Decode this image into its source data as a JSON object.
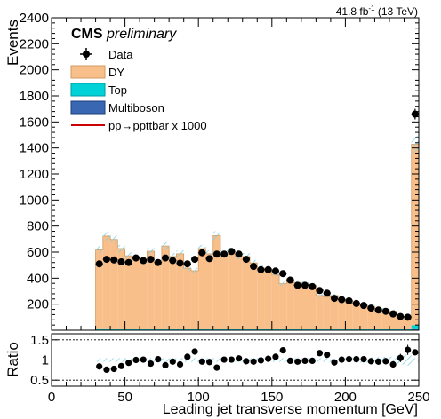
{
  "header": {
    "lumi": "41.8 fb",
    "lumi_exp": "-1",
    "energy": "(13 TeV)"
  },
  "labels": {
    "cms": "CMS",
    "preliminary": "preliminary"
  },
  "legend": [
    "Data",
    "DY",
    "Top",
    "Multiboson",
    "pp→ppttbar x 1000"
  ],
  "colors": {
    "dy": "#f9bf8a",
    "dy_edge": "#d49a60",
    "top": "#00d2d8",
    "multiboson": "#3a67b2",
    "signal": "#cc0000",
    "unc_hatch": "#7fd1e6"
  },
  "chart_data": [
    {
      "type": "bar",
      "panel": "main",
      "ylabel": "Events",
      "xlim": [
        0,
        250
      ],
      "ylim": [
        0,
        2400
      ],
      "yticks": [
        200,
        400,
        600,
        800,
        1000,
        1200,
        1400,
        1600,
        1800,
        2000,
        2200,
        2400
      ],
      "bin_edges": [
        30,
        35,
        40,
        45,
        50,
        55,
        60,
        65,
        70,
        75,
        80,
        85,
        90,
        95,
        100,
        105,
        110,
        115,
        120,
        125,
        130,
        135,
        140,
        145,
        150,
        155,
        160,
        165,
        170,
        175,
        180,
        185,
        190,
        195,
        200,
        205,
        210,
        215,
        220,
        225,
        230,
        235,
        240,
        245,
        250
      ],
      "series": [
        {
          "name": "DY",
          "values": [
            610,
            715,
            690,
            620,
            565,
            555,
            530,
            600,
            510,
            640,
            560,
            580,
            470,
            450,
            620,
            580,
            720,
            580,
            600,
            560,
            560,
            510,
            470,
            450,
            420,
            350,
            390,
            360,
            350,
            340,
            260,
            250,
            260,
            230,
            220,
            200,
            185,
            175,
            160,
            150,
            140,
            100,
            80,
            1390
          ]
        },
        {
          "name": "Top",
          "values": [
            6,
            6,
            5,
            5,
            5,
            5,
            5,
            5,
            5,
            5,
            5,
            5,
            5,
            5,
            5,
            5,
            5,
            5,
            5,
            5,
            5,
            5,
            5,
            5,
            5,
            5,
            5,
            5,
            5,
            5,
            5,
            5,
            5,
            5,
            5,
            5,
            5,
            5,
            5,
            5,
            5,
            5,
            5,
            30
          ]
        },
        {
          "name": "Multiboson",
          "values": [
            2,
            2,
            2,
            2,
            2,
            2,
            2,
            2,
            2,
            2,
            2,
            2,
            2,
            2,
            2,
            2,
            2,
            2,
            2,
            2,
            2,
            2,
            2,
            2,
            2,
            2,
            2,
            2,
            2,
            2,
            2,
            2,
            2,
            2,
            2,
            2,
            2,
            2,
            2,
            2,
            2,
            2,
            2,
            8
          ]
        },
        {
          "name": "Data",
          "values": [
            510,
            545,
            540,
            525,
            520,
            555,
            535,
            545,
            520,
            555,
            535,
            515,
            510,
            545,
            595,
            550,
            585,
            585,
            605,
            585,
            545,
            490,
            465,
            465,
            455,
            435,
            385,
            345,
            345,
            335,
            305,
            285,
            245,
            235,
            225,
            205,
            190,
            170,
            155,
            145,
            125,
            105,
            100,
            1660
          ]
        }
      ]
    },
    {
      "type": "scatter",
      "panel": "ratio",
      "xlabel": "Leading jet transverse momentum [GeV]",
      "ylabel": "Ratio",
      "xlim": [
        0,
        250
      ],
      "ylim": [
        0.35,
        1.65
      ],
      "yticks": [
        0.5,
        1,
        1.5
      ],
      "xticks": [
        0,
        50,
        100,
        150,
        200,
        250
      ],
      "x": [
        32.5,
        37.5,
        42.5,
        47.5,
        52.5,
        57.5,
        62.5,
        67.5,
        72.5,
        77.5,
        82.5,
        87.5,
        92.5,
        97.5,
        102.5,
        107.5,
        112.5,
        117.5,
        122.5,
        127.5,
        132.5,
        137.5,
        142.5,
        147.5,
        152.5,
        157.5,
        162.5,
        167.5,
        172.5,
        177.5,
        182.5,
        187.5,
        192.5,
        197.5,
        202.5,
        207.5,
        212.5,
        217.5,
        222.5,
        227.5,
        232.5,
        237.5,
        242.5,
        247.5
      ],
      "values": [
        0.84,
        0.76,
        0.78,
        0.85,
        0.93,
        1.0,
        1.01,
        0.91,
        1.02,
        0.87,
        0.96,
        0.89,
        1.08,
        1.21,
        0.96,
        0.95,
        0.81,
        1.01,
        1.01,
        1.04,
        0.97,
        0.96,
        0.99,
        1.03,
        1.08,
        1.24,
        0.98,
        0.96,
        0.98,
        0.98,
        1.17,
        1.13,
        0.94,
        1.01,
        1.02,
        1.02,
        1.02,
        0.97,
        0.96,
        0.97,
        0.89,
        1.05,
        1.25,
        1.19
      ]
    }
  ]
}
